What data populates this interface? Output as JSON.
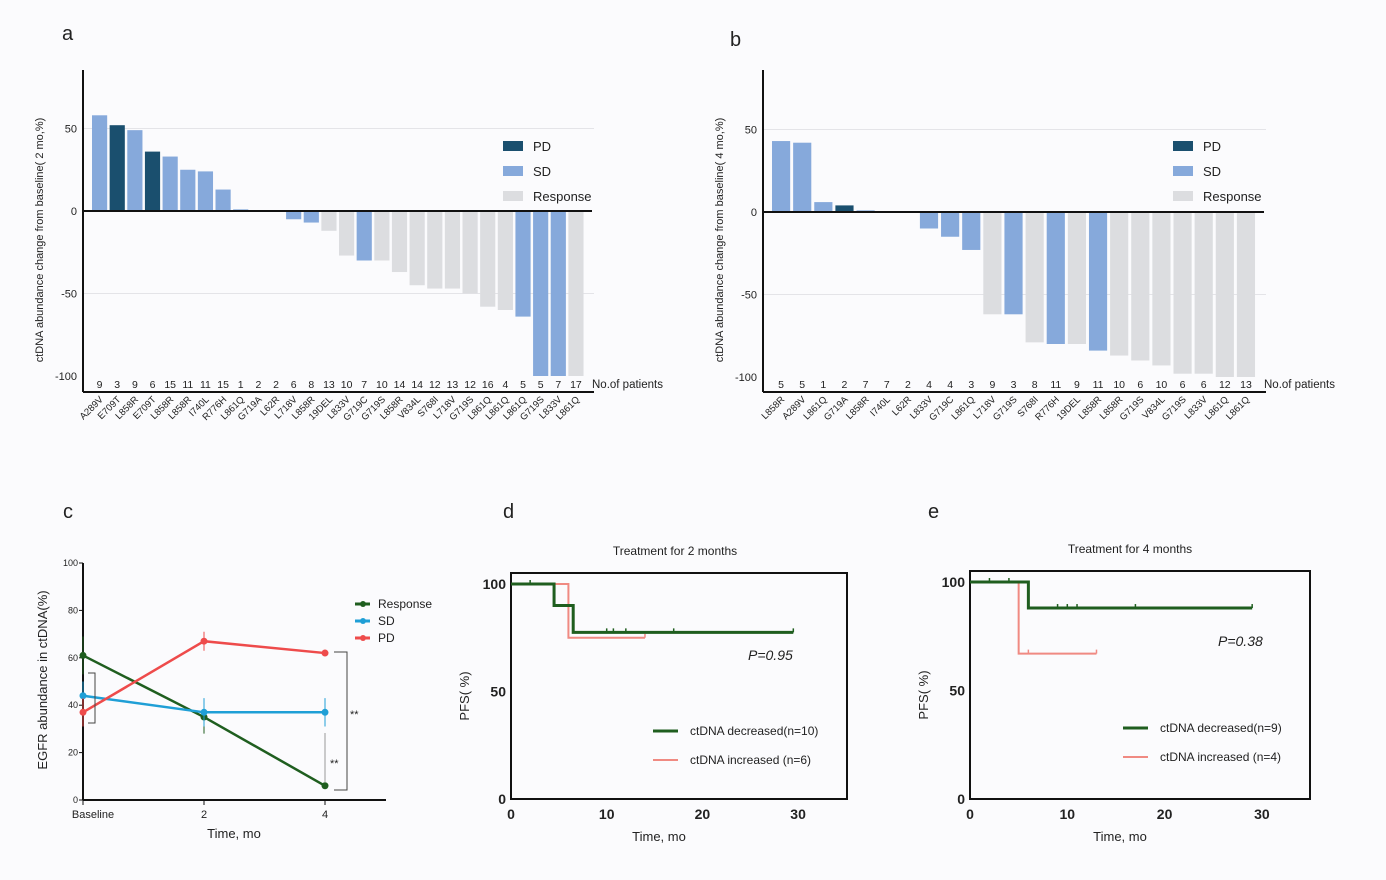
{
  "colors": {
    "PD": "#1a4f6e",
    "SD": "#86a9db",
    "Response": "#dcdde0",
    "green": "#1f5e1f",
    "blue": "#1f9fd6",
    "red": "#ee4b4b",
    "km_increased": "#f08a82"
  },
  "chart_data": [
    {
      "panel": "a",
      "type": "bar",
      "ylabel": "ctDNA abundance change from baseline( 2 mo,%)",
      "ylim": [
        -100,
        80
      ],
      "yticks": [
        50,
        0,
        -50,
        -100
      ],
      "legend": [
        "PD",
        "SD",
        "Response"
      ],
      "legend_position": "top-right",
      "count_label": "No.of patients",
      "categories": [
        "A289V",
        "E709T",
        "L858R",
        "E709T",
        "L858R",
        "L858R",
        "I740L",
        "R776H",
        "L861Q",
        "G719A",
        "L62R",
        "L718V",
        "L858R",
        "19DEL",
        "L833V",
        "G719C",
        "G719S",
        "L858R",
        "V834L",
        "S768I",
        "L718V",
        "G719S",
        "L861Q",
        "L861Q",
        "L861Q",
        "G719S",
        "L833V",
        "L861Q"
      ],
      "patients": [
        9,
        3,
        9,
        6,
        15,
        11,
        11,
        15,
        1,
        2,
        2,
        6,
        8,
        13,
        10,
        7,
        10,
        14,
        14,
        12,
        13,
        12,
        16,
        4,
        5,
        5,
        7,
        17
      ],
      "values": [
        58,
        52,
        49,
        36,
        33,
        25,
        24,
        13,
        1,
        0,
        0,
        -5,
        -7,
        -12,
        -27,
        -30,
        -30,
        -37,
        -45,
        -47,
        -47,
        -50,
        -58,
        -60,
        -64,
        -100,
        -100,
        -100
      ],
      "groups": [
        "SD",
        "PD",
        "SD",
        "PD",
        "SD",
        "SD",
        "SD",
        "SD",
        "SD",
        "Response",
        "Response",
        "SD",
        "SD",
        "Response",
        "Response",
        "SD",
        "Response",
        "Response",
        "Response",
        "Response",
        "Response",
        "Response",
        "Response",
        "Response",
        "SD",
        "SD",
        "SD",
        "Response"
      ]
    },
    {
      "panel": "b",
      "type": "bar",
      "ylabel": "ctDNA abundance change from baseline( 4 mo,%)",
      "ylim": [
        -100,
        80
      ],
      "yticks": [
        50,
        0,
        -50,
        -100
      ],
      "legend": [
        "PD",
        "SD",
        "Response"
      ],
      "legend_position": "top-right",
      "count_label": "No.of patients",
      "categories": [
        "L858R",
        "A289V",
        "L861Q",
        "G719A",
        "L858R",
        "I740L",
        "L62R",
        "L833V",
        "G719C",
        "L861Q",
        "L718V",
        "G719S",
        "S768I",
        "R776H",
        "19DEL",
        "L858R",
        "L858R",
        "G719S",
        "V834L",
        "G719S",
        "L833V",
        "L861Q",
        "L861Q"
      ],
      "patients": [
        5,
        5,
        1,
        2,
        7,
        7,
        2,
        4,
        4,
        3,
        9,
        3,
        8,
        11,
        9,
        11,
        10,
        6,
        10,
        6,
        6,
        12,
        13
      ],
      "values": [
        43,
        42,
        6,
        4,
        1,
        0.5,
        0.5,
        -10,
        -15,
        -23,
        -62,
        -62,
        -79,
        -80,
        -80,
        -84,
        -87,
        -90,
        -93,
        -98,
        -98,
        -100,
        -100
      ],
      "groups": [
        "SD",
        "SD",
        "SD",
        "PD",
        "SD",
        "SD",
        "SD",
        "SD",
        "SD",
        "SD",
        "Response",
        "SD",
        "Response",
        "SD",
        "Response",
        "SD",
        "Response",
        "Response",
        "Response",
        "Response",
        "Response",
        "Response",
        "Response"
      ]
    },
    {
      "panel": "c",
      "type": "line",
      "xlabel": "Time, mo",
      "ylabel": "EGFR abundance in ctDNA(%)",
      "x": [
        "Baseline",
        "2",
        "4"
      ],
      "ylim": [
        0,
        100
      ],
      "yticks": [
        0,
        20,
        40,
        60,
        80,
        100
      ],
      "legend_position": "right",
      "series": [
        {
          "name": "Response",
          "color": "green",
          "values": [
            61,
            35,
            6
          ],
          "err": [
            8,
            7,
            1
          ]
        },
        {
          "name": "SD",
          "color": "blue",
          "values": [
            44,
            37,
            37
          ],
          "err": [
            6,
            6,
            6
          ]
        },
        {
          "name": "PD",
          "color": "red",
          "values": [
            37,
            67,
            62
          ],
          "err": [
            6,
            4,
            1
          ]
        }
      ],
      "significance": [
        "**",
        "**"
      ]
    },
    {
      "panel": "d",
      "type": "line",
      "title": "Treatment for 2 months",
      "xlabel": "Time, mo",
      "ylabel": "PFS( %)",
      "xlim": [
        0,
        35
      ],
      "xticks": [
        0,
        10,
        20,
        30
      ],
      "ylim": [
        0,
        105
      ],
      "yticks": [
        0,
        50,
        100
      ],
      "annotation": "P=0.95",
      "legend_position": "bottom-right",
      "series": [
        {
          "name": "ctDNA decreased(n=10)",
          "color": "green",
          "steps": [
            [
              0,
              100
            ],
            [
              4.5,
              90
            ],
            [
              6.5,
              77.5
            ]
          ],
          "end": 29.5,
          "censored": [
            2,
            10,
            10.7,
            12,
            17,
            29.5
          ]
        },
        {
          "name": "ctDNA increased (n=6)",
          "color": "km_increased",
          "steps": [
            [
              0,
              100
            ],
            [
              6,
              75
            ]
          ],
          "end": 14,
          "censored": [
            14
          ]
        }
      ]
    },
    {
      "panel": "e",
      "type": "line",
      "title": "Treatment for 4 months",
      "xlabel": "Time, mo",
      "ylabel": "PFS( %)",
      "xlim": [
        0,
        35
      ],
      "xticks": [
        0,
        10,
        20,
        30
      ],
      "ylim": [
        0,
        105
      ],
      "yticks": [
        0,
        50,
        100
      ],
      "annotation": "P=0.38",
      "legend_position": "bottom-right",
      "series": [
        {
          "name": "ctDNA decreased(n=9)",
          "color": "green",
          "steps": [
            [
              0,
              100
            ],
            [
              6,
              88
            ]
          ],
          "end": 29,
          "censored": [
            2,
            4,
            9,
            10,
            11,
            17,
            29
          ]
        },
        {
          "name": "ctDNA increased (n=4)",
          "color": "km_increased",
          "steps": [
            [
              0,
              100
            ],
            [
              5,
              67
            ]
          ],
          "end": 13,
          "censored": [
            6,
            13
          ]
        }
      ]
    }
  ]
}
